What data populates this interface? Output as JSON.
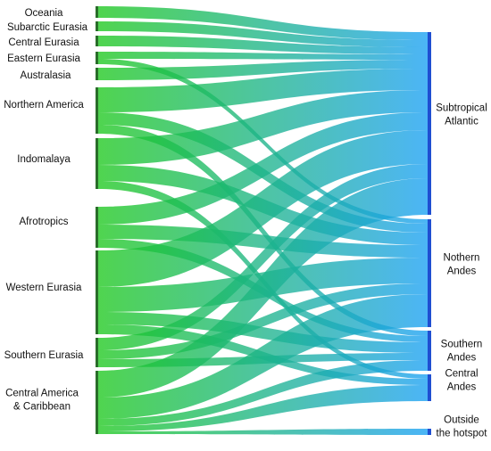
{
  "colors": {
    "source_start": "#1ec81e",
    "target_end": "#1aa0f5",
    "node_left": "#2a6e2a",
    "node_right": "#1f4fd1"
  },
  "sources": [
    {
      "id": "oceania",
      "lines": [
        "Oceania"
      ]
    },
    {
      "id": "subarctic-eurasia",
      "lines": [
        "Subarctic Eurasia"
      ]
    },
    {
      "id": "central-eurasia",
      "lines": [
        "Central Eurasia"
      ]
    },
    {
      "id": "eastern-eurasia",
      "lines": [
        "Eastern Eurasia"
      ]
    },
    {
      "id": "australasia",
      "lines": [
        "Australasia"
      ]
    },
    {
      "id": "northern-america",
      "lines": [
        "Northern America"
      ]
    },
    {
      "id": "indomalaya",
      "lines": [
        "Indomalaya"
      ]
    },
    {
      "id": "afrotropics",
      "lines": [
        "Afrotropics"
      ]
    },
    {
      "id": "western-eurasia",
      "lines": [
        "Western  Eurasia"
      ]
    },
    {
      "id": "southern-eurasia",
      "lines": [
        "Southern Eurasia"
      ]
    },
    {
      "id": "central-america-caribbean",
      "lines": [
        "Central America",
        "& Caribbean"
      ]
    }
  ],
  "targets": [
    {
      "id": "subtropical-atlantic",
      "lines": [
        "Subtropical",
        "Atlantic"
      ]
    },
    {
      "id": "northern-andes",
      "lines": [
        "Nothern",
        "Andes"
      ]
    },
    {
      "id": "southern-andes",
      "lines": [
        "Southern",
        "Andes"
      ]
    },
    {
      "id": "central-andes",
      "lines": [
        "Central",
        "Andes"
      ]
    },
    {
      "id": "outside-hotspot",
      "lines": [
        "Outside",
        "the hotspot"
      ]
    }
  ]
}
